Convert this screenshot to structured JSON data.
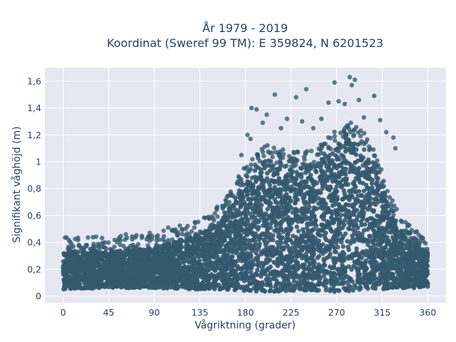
{
  "chart_data": {
    "type": "scatter",
    "title_line1": "År 1979 - 2019",
    "title_line2": "Koordinat (Sweref 99 TM): E 359824, N 6201523",
    "xlabel": "Vågriktning (grader)",
    "ylabel": "Signifikant våghöjd (m)",
    "xlim": [
      -18,
      378
    ],
    "ylim": [
      -0.05,
      1.7
    ],
    "xticks": [
      0,
      45,
      90,
      135,
      180,
      225,
      270,
      315,
      360
    ],
    "xtick_labels": [
      "0",
      "45",
      "90",
      "135",
      "180",
      "225",
      "270",
      "315",
      "360"
    ],
    "yticks": [
      0,
      0.2,
      0.4,
      0.6,
      0.8,
      1,
      1.2,
      1.4,
      1.6
    ],
    "ytick_labels": [
      "0",
      "0,2",
      "0,4",
      "0,6",
      "0,8",
      "1",
      "1,2",
      "1,4",
      "1,6"
    ],
    "grid": true,
    "marker_color": "#34596e",
    "background_color": "#e5e8f1",
    "envelope": {
      "x": [
        0,
        45,
        90,
        135,
        160,
        180,
        200,
        225,
        250,
        270,
        285,
        300,
        315,
        330,
        345,
        360
      ],
      "y_min": [
        0.05,
        0.06,
        0.06,
        0.05,
        0.05,
        0.04,
        0.03,
        0.04,
        0.04,
        0.03,
        0.04,
        0.05,
        0.05,
        0.06,
        0.06,
        0.07
      ],
      "y_max": [
        0.33,
        0.33,
        0.36,
        0.46,
        0.6,
        0.88,
        1.02,
        0.95,
        0.98,
        1.13,
        1.18,
        1.08,
        0.82,
        0.52,
        0.38,
        0.33
      ]
    },
    "highlight_points": [
      {
        "x": 283,
        "y": 1.63
      },
      {
        "x": 288,
        "y": 1.61
      },
      {
        "x": 268,
        "y": 1.59
      },
      {
        "x": 285,
        "y": 1.57
      },
      {
        "x": 240,
        "y": 1.54
      },
      {
        "x": 209,
        "y": 1.5
      },
      {
        "x": 292,
        "y": 1.46
      },
      {
        "x": 230,
        "y": 1.48
      },
      {
        "x": 307,
        "y": 1.49
      },
      {
        "x": 191,
        "y": 1.39
      },
      {
        "x": 186,
        "y": 1.4
      },
      {
        "x": 272,
        "y": 1.45
      },
      {
        "x": 278,
        "y": 1.43
      },
      {
        "x": 262,
        "y": 1.44
      },
      {
        "x": 201,
        "y": 1.35
      },
      {
        "x": 221,
        "y": 1.32
      },
      {
        "x": 236,
        "y": 1.3
      },
      {
        "x": 255,
        "y": 1.32
      },
      {
        "x": 297,
        "y": 1.33
      },
      {
        "x": 313,
        "y": 1.31
      },
      {
        "x": 182,
        "y": 1.2
      },
      {
        "x": 176,
        "y": 1.05
      },
      {
        "x": 319,
        "y": 1.22
      },
      {
        "x": 326,
        "y": 1.18
      },
      {
        "x": 328,
        "y": 1.1
      },
      {
        "x": 176,
        "y": 0.85
      },
      {
        "x": 185,
        "y": 1.17
      },
      {
        "x": 130,
        "y": 0.55
      },
      {
        "x": 148,
        "y": 0.58
      },
      {
        "x": 158,
        "y": 0.66
      },
      {
        "x": 165,
        "y": 0.75
      },
      {
        "x": 55,
        "y": 0.42
      },
      {
        "x": 95,
        "y": 0.42
      },
      {
        "x": 115,
        "y": 0.42
      },
      {
        "x": 10,
        "y": 0.37
      },
      {
        "x": 30,
        "y": 0.37
      },
      {
        "x": 338,
        "y": 0.55
      },
      {
        "x": 345,
        "y": 0.43
      },
      {
        "x": 352,
        "y": 0.4
      },
      {
        "x": 247,
        "y": 1.25
      },
      {
        "x": 215,
        "y": 1.25
      },
      {
        "x": 197,
        "y": 1.29
      }
    ]
  }
}
